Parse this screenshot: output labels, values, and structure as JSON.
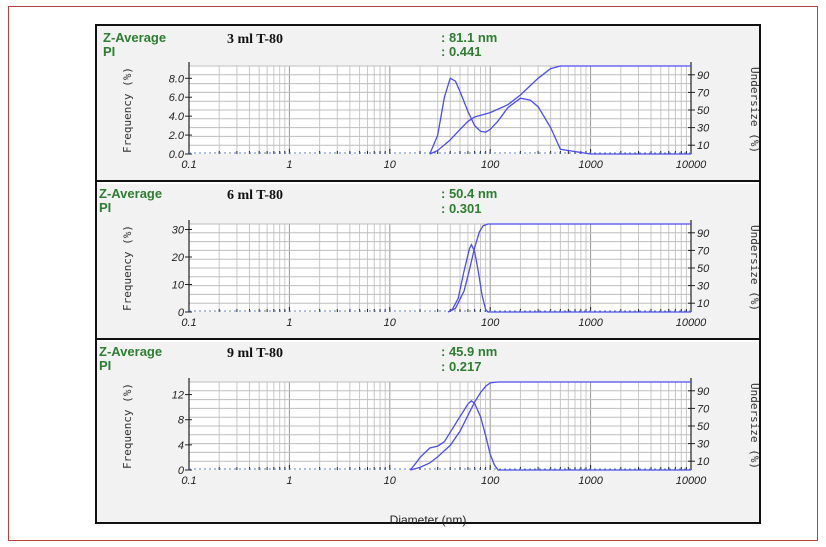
{
  "chart_data": [
    {
      "type": "line",
      "sample": "3 ml T-80",
      "z_average_label": "Z-Average",
      "z_average_value": ": 81.1 nm",
      "pi_label": "PI",
      "pi_value": ": 0.441",
      "xscale": "log",
      "xlim": [
        0.1,
        10000
      ],
      "x_ticks": [
        "0.1",
        "1",
        "10",
        "100",
        "1000",
        "10000"
      ],
      "y_left_label": "Frequency (%)",
      "y_left_ticks": [
        "0.0",
        "2.0",
        "4.0",
        "6.0",
        "8.0"
      ],
      "y_left_lim": [
        0,
        9.3
      ],
      "y_right_label": "Undersize (%)",
      "y_right_ticks": [
        "10",
        "30",
        "50",
        "70",
        "90"
      ],
      "y_right_lim": [
        0,
        100
      ],
      "frequency": {
        "x": [
          25,
          30,
          35,
          40,
          45,
          50,
          60,
          70,
          80,
          90,
          100,
          120,
          150,
          200,
          250,
          300,
          400,
          500,
          1000,
          10000
        ],
        "y": [
          0,
          2.0,
          6.0,
          8.0,
          7.7,
          6.6,
          4.5,
          3.0,
          2.4,
          2.3,
          2.6,
          3.5,
          4.9,
          5.9,
          5.7,
          5.0,
          2.8,
          0.5,
          0,
          0
        ]
      },
      "undersize": {
        "x": [
          25,
          30,
          40,
          50,
          60,
          70,
          100,
          150,
          200,
          300,
          400,
          500,
          1000,
          10000
        ],
        "y": [
          0,
          4,
          16,
          28,
          37,
          42,
          47,
          56,
          67,
          86,
          97,
          100,
          100,
          100
        ]
      }
    },
    {
      "type": "line",
      "sample": "6 ml T-80",
      "z_average_label": "Z-Average",
      "z_average_value": ": 50.4 nm",
      "pi_label": "PI",
      "pi_value": ": 0.301",
      "xscale": "log",
      "xlim": [
        0.1,
        10000
      ],
      "x_ticks": [
        "0.1",
        "1",
        "10",
        "100",
        "1000",
        "10000"
      ],
      "y_left_label": "Frequency (%)",
      "y_left_ticks": [
        "0",
        "10",
        "20",
        "30"
      ],
      "y_left_lim": [
        0,
        32
      ],
      "y_right_label": "Undersize (%)",
      "y_right_ticks": [
        "10",
        "30",
        "50",
        "70",
        "90"
      ],
      "y_right_lim": [
        0,
        100
      ],
      "frequency": {
        "x": [
          38,
          42,
          48,
          55,
          62,
          65,
          70,
          76,
          83,
          90,
          95,
          100,
          10000
        ],
        "y": [
          0,
          1,
          5,
          15,
          23,
          24.5,
          22,
          15,
          6,
          1,
          0,
          0,
          0
        ]
      },
      "undersize": {
        "x": [
          38,
          45,
          55,
          62,
          70,
          78,
          85,
          95,
          100,
          2000,
          5000,
          10000
        ],
        "y": [
          0,
          4,
          24,
          48,
          73,
          91,
          98,
          100,
          100,
          100,
          100,
          100
        ]
      }
    },
    {
      "type": "line",
      "sample": "9 ml T-80",
      "z_average_label": "Z-Average",
      "z_average_value": ": 45.9 nm",
      "pi_label": "PI",
      "pi_value": ": 0.217",
      "xscale": "log",
      "xlim": [
        0.1,
        10000
      ],
      "x_ticks": [
        "0.1",
        "1",
        "10",
        "100",
        "1000",
        "10000"
      ],
      "xlabel": "Diameter (nm)",
      "y_left_label": "Frequency (%)",
      "y_left_ticks": [
        "0",
        "4",
        "8",
        "12"
      ],
      "y_left_lim": [
        0,
        14
      ],
      "y_right_label": "Undersize (%)",
      "y_right_ticks": [
        "10",
        "30",
        "50",
        "70",
        "90"
      ],
      "y_right_lim": [
        0,
        100
      ],
      "frequency": {
        "x": [
          16,
          18,
          20,
          25,
          30,
          35,
          40,
          50,
          60,
          65,
          70,
          80,
          90,
          100,
          110,
          120,
          10000
        ],
        "y": [
          0,
          1,
          2,
          3.5,
          3.8,
          4.5,
          6.0,
          8.5,
          10.5,
          11.0,
          10.6,
          8.5,
          5.5,
          2.5,
          0.8,
          0,
          0
        ]
      },
      "undersize": {
        "x": [
          16,
          20,
          25,
          30,
          40,
          50,
          60,
          70,
          80,
          90,
          100,
          120,
          10000
        ],
        "y": [
          0,
          3,
          8,
          15,
          28,
          44,
          62,
          77,
          88,
          95,
          99,
          100,
          100
        ]
      }
    }
  ],
  "colors": {
    "curve": "#4c4cf0",
    "baseline": "#5a7fd0",
    "label_green": "#2e7d32",
    "frame_red": "#b94040"
  }
}
